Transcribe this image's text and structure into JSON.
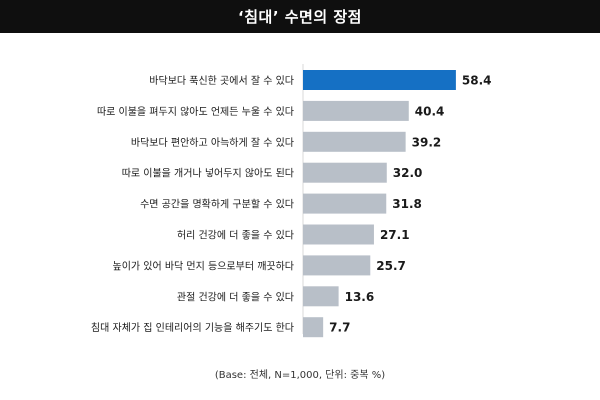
{
  "title": "‘침대’ 수면의 장점",
  "footnote": "(Base: 전체, N=1,000, 단위: 중복 %)",
  "colors": {
    "highlight": "#1570c4",
    "bar": "#b8bfc8",
    "title_bg": "#0f0f0f"
  },
  "chart_data": {
    "type": "bar",
    "orientation": "horizontal",
    "categories": [
      "바닥보다 푹신한 곳에서 잘 수 있다",
      "따로 이불을 펴두지 않아도 언제든 누울 수 있다",
      "바닥보다 편안하고 아늑하게 잘 수 있다",
      "따로 이불을 개거나 넣어두지 않아도 된다",
      "수면 공간을 명확하게 구분할 수 있다",
      "허리 건강에 더 좋을 수 있다",
      "높이가 있어 바닥 먼지 등으로부터 깨끗하다",
      "관절 건강에 더 좋을 수 있다",
      "침대 자체가 집 인테리어의 기능을 해주기도 한다"
    ],
    "values": [
      58.4,
      40.4,
      39.2,
      32.0,
      31.8,
      27.1,
      25.7,
      13.6,
      7.7
    ],
    "value_labels": [
      "58.4",
      "40.4",
      "39.2",
      "32.0",
      "31.8",
      "27.1",
      "25.7",
      "13.6",
      "7.7"
    ],
    "highlight_index": 0,
    "xlim": [
      0,
      60
    ],
    "grid": false
  }
}
